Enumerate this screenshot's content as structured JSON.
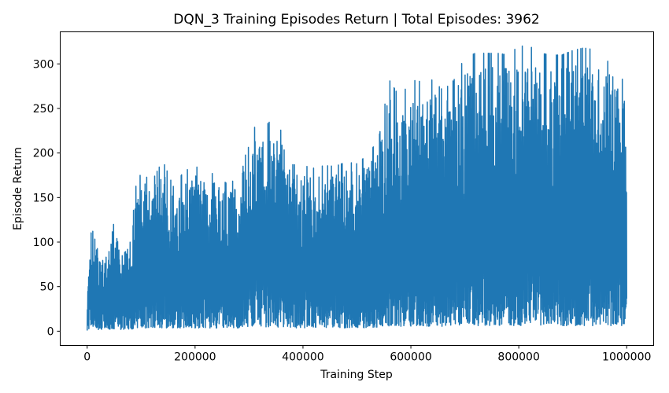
{
  "chart_data": {
    "type": "line",
    "title": "DQN_3 Training Episodes Return | Total Episodes: 3962",
    "xlabel": "Training Step",
    "ylabel": "Episode Return",
    "xlim": [
      -50000,
      1050000
    ],
    "ylim": [
      -16,
      336
    ],
    "xticks": [
      0,
      200000,
      400000,
      600000,
      800000,
      1000000
    ],
    "yticks": [
      0,
      50,
      100,
      150,
      200,
      250,
      300
    ],
    "grid": false,
    "legend": "none",
    "line_color": "#1f77b4",
    "series": [
      {
        "x": [
          0,
          5000,
          10000,
          20000,
          30000,
          40000,
          50000,
          60000,
          70000,
          80000,
          90000,
          100000,
          120000,
          140000,
          160000,
          180000,
          200000,
          220000,
          240000,
          260000,
          280000,
          300000,
          320000,
          340000,
          360000,
          380000,
          400000,
          420000,
          440000,
          460000,
          480000,
          500000,
          520000,
          540000,
          560000,
          580000,
          600000,
          620000,
          640000,
          660000,
          680000,
          700000,
          720000,
          740000,
          760000,
          780000,
          800000,
          820000,
          840000,
          860000,
          880000,
          900000,
          920000,
          940000,
          960000,
          980000,
          1000000
        ],
        "min": [
          0,
          0,
          0,
          0,
          0,
          0,
          0,
          0,
          0,
          0,
          0,
          0,
          0,
          0,
          0,
          0,
          0,
          0,
          0,
          0,
          0,
          0,
          0,
          0,
          0,
          0,
          0,
          0,
          0,
          0,
          0,
          0,
          0,
          0,
          0,
          0,
          0,
          0,
          0,
          0,
          0,
          0,
          0,
          0,
          0,
          0,
          0,
          0,
          0,
          0,
          0,
          0,
          0,
          0,
          0,
          0,
          0
        ],
        "max": [
          38,
          108,
          113,
          90,
          78,
          88,
          124,
          100,
          98,
          100,
          162,
          178,
          168,
          192,
          162,
          180,
          185,
          180,
          175,
          165,
          172,
          233,
          225,
          236,
          225,
          187,
          186,
          183,
          186,
          185,
          190,
          188,
          198,
          215,
          282,
          262,
          282,
          280,
          282,
          270,
          282,
          308,
          312,
          312,
          312,
          310,
          320,
          320,
          312,
          310,
          310,
          315,
          318,
          316,
          300,
          312,
          263
        ]
      }
    ]
  }
}
